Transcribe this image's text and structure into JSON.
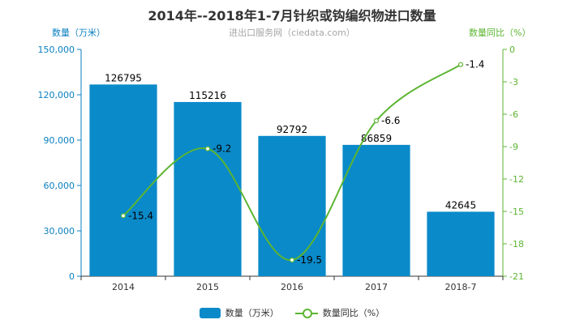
{
  "header": {
    "title": "2014年--2018年1-7月针织或钩编织物进口数量",
    "source": "进出口服务网（ciedata.com）",
    "left_axis_label": "数量（万米）",
    "right_axis_label": "数量同比（%）"
  },
  "legend": {
    "bar_label": "数量（万米）",
    "line_label": "数量同比（%）"
  },
  "colors": {
    "bar": "#0a8ac9",
    "line": "#5cb531",
    "left_axis": "#0a7fc0",
    "right_axis": "#5cb531"
  },
  "chart_data": {
    "type": "bar",
    "title": "2014年--2018年1-7月针织或钩编织物进口数量",
    "categories": [
      "2014",
      "2015",
      "2016",
      "2017",
      "2018-7"
    ],
    "series": [
      {
        "name": "数量（万米）",
        "type": "bar",
        "axis": "left",
        "values": [
          126795,
          115216,
          92792,
          86859,
          42645
        ]
      },
      {
        "name": "数量同比（%）",
        "type": "line",
        "axis": "right",
        "values": [
          -15.4,
          -9.2,
          -19.5,
          -6.6,
          -1.4
        ]
      }
    ],
    "ylabel": "数量（万米）",
    "ylabel_right": "数量同比（%）",
    "ylim": [
      0,
      150000
    ],
    "ylim_right": [
      -21,
      0
    ],
    "yticks": [
      "0",
      "30,000",
      "60,000",
      "90,000",
      "120,000",
      "150,000"
    ],
    "yticks_right": [
      "0",
      "-3",
      "-6",
      "-9",
      "-12",
      "-15",
      "-18",
      "-21"
    ],
    "legend_position": "bottom"
  }
}
